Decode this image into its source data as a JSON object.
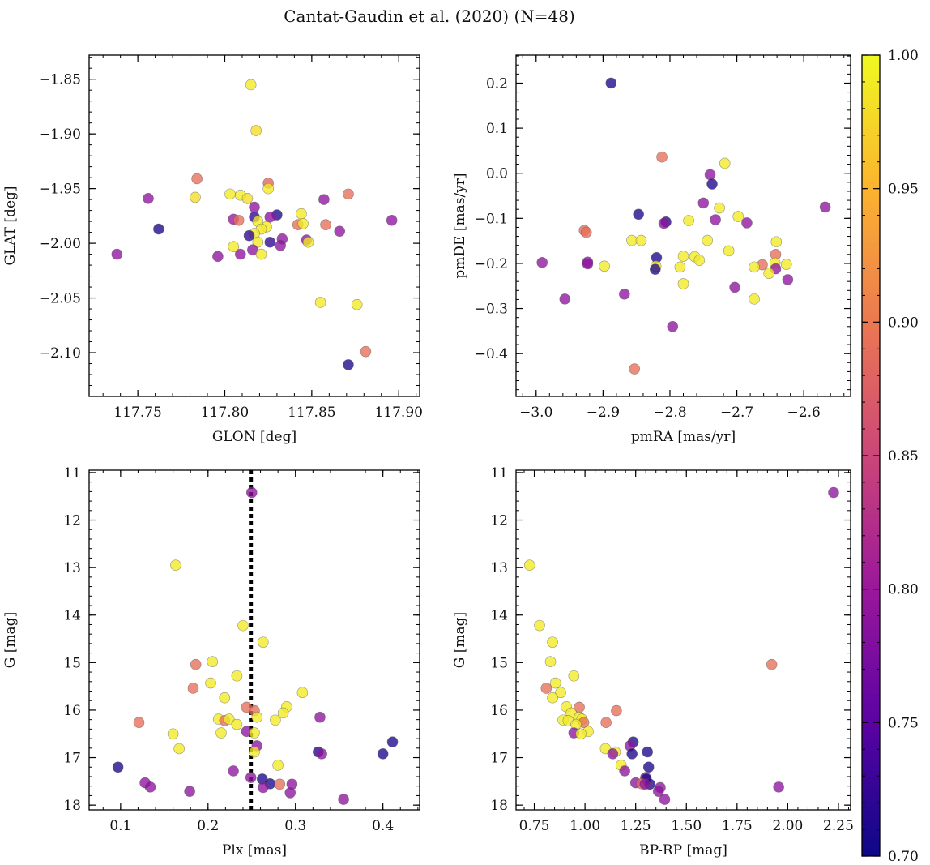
{
  "figure": {
    "title": "Cantat-Gaudin et al. (2020) (N=48)"
  },
  "colorbar": {
    "range": [
      0.7,
      1.0
    ],
    "ticks": [
      0.7,
      0.75,
      0.8,
      0.85,
      0.9,
      0.95,
      1.0
    ],
    "tick_labels": [
      "0.70",
      "0.75",
      "0.80",
      "0.85",
      "0.90",
      "0.95",
      "1.00"
    ],
    "colormap": "plasma",
    "stops": [
      "#0d0887",
      "#5b02a3",
      "#9a179b",
      "#cb4678",
      "#eb7852",
      "#fbb32f",
      "#f0f921"
    ]
  },
  "chart_data": [
    {
      "type": "scatter",
      "id": "sky",
      "title": "",
      "xlabel": "GLON [deg]",
      "ylabel": "GLAT [deg]",
      "xlim": [
        117.722,
        117.912
      ],
      "ylim": [
        -2.14,
        -1.828
      ],
      "y_inverted": false,
      "xticks": [
        117.75,
        117.8,
        117.85,
        117.9
      ],
      "xtick_labels": [
        "117.75",
        "117.80",
        "117.85",
        "117.90"
      ],
      "xminor": 0.01,
      "yticks": [
        -2.1,
        -2.05,
        -2.0,
        -1.95,
        -1.9,
        -1.85
      ],
      "ytick_labels": [
        "−2.10",
        "−2.05",
        "−2.00",
        "−1.95",
        "−1.90",
        "−1.85"
      ],
      "yminor": 0.01,
      "points": [
        {
          "x": 117.815,
          "y": -1.855,
          "c": 0.99
        },
        {
          "x": 117.818,
          "y": -1.897,
          "c": 0.98
        },
        {
          "x": 117.784,
          "y": -1.941,
          "c": 0.89
        },
        {
          "x": 117.825,
          "y": -1.945,
          "c": 0.88
        },
        {
          "x": 117.756,
          "y": -1.959,
          "c": 0.79
        },
        {
          "x": 117.783,
          "y": -1.958,
          "c": 0.98
        },
        {
          "x": 117.803,
          "y": -1.955,
          "c": 0.99
        },
        {
          "x": 117.809,
          "y": -1.956,
          "c": 0.99
        },
        {
          "x": 117.813,
          "y": -1.959,
          "c": 0.98
        },
        {
          "x": 117.825,
          "y": -1.95,
          "c": 0.99
        },
        {
          "x": 117.871,
          "y": -1.955,
          "c": 0.89
        },
        {
          "x": 117.857,
          "y": -1.96,
          "c": 0.79
        },
        {
          "x": 117.817,
          "y": -1.967,
          "c": 0.79
        },
        {
          "x": 117.844,
          "y": -1.973,
          "c": 0.99
        },
        {
          "x": 117.83,
          "y": -1.974,
          "c": 0.71
        },
        {
          "x": 117.805,
          "y": -1.978,
          "c": 0.8
        },
        {
          "x": 117.808,
          "y": -1.979,
          "c": 0.89
        },
        {
          "x": 117.817,
          "y": -1.976,
          "c": 0.72
        },
        {
          "x": 117.826,
          "y": -1.976,
          "c": 0.79
        },
        {
          "x": 117.819,
          "y": -1.98,
          "c": 0.99
        },
        {
          "x": 117.896,
          "y": -1.979,
          "c": 0.79
        },
        {
          "x": 117.762,
          "y": -1.987,
          "c": 0.71
        },
        {
          "x": 117.858,
          "y": -1.983,
          "c": 0.89
        },
        {
          "x": 117.842,
          "y": -1.983,
          "c": 0.89
        },
        {
          "x": 117.845,
          "y": -1.982,
          "c": 0.99
        },
        {
          "x": 117.824,
          "y": -1.985,
          "c": 0.99
        },
        {
          "x": 117.821,
          "y": -1.987,
          "c": 0.99
        },
        {
          "x": 117.866,
          "y": -1.989,
          "c": 0.79
        },
        {
          "x": 117.817,
          "y": -1.991,
          "c": 0.99
        },
        {
          "x": 117.814,
          "y": -1.993,
          "c": 0.72
        },
        {
          "x": 117.833,
          "y": -1.996,
          "c": 0.79
        },
        {
          "x": 117.826,
          "y": -1.999,
          "c": 0.72
        },
        {
          "x": 117.847,
          "y": -1.997,
          "c": 0.79
        },
        {
          "x": 117.848,
          "y": -1.999,
          "c": 0.99
        },
        {
          "x": 117.819,
          "y": -1.999,
          "c": 0.99
        },
        {
          "x": 117.832,
          "y": -2.002,
          "c": 0.79
        },
        {
          "x": 117.805,
          "y": -2.003,
          "c": 0.99
        },
        {
          "x": 117.816,
          "y": -2.006,
          "c": 0.79
        },
        {
          "x": 117.738,
          "y": -2.01,
          "c": 0.79
        },
        {
          "x": 117.809,
          "y": -2.01,
          "c": 0.79
        },
        {
          "x": 117.821,
          "y": -2.01,
          "c": 0.99
        },
        {
          "x": 117.796,
          "y": -2.012,
          "c": 0.79
        },
        {
          "x": 117.855,
          "y": -2.054,
          "c": 0.99
        },
        {
          "x": 117.876,
          "y": -2.056,
          "c": 0.99
        },
        {
          "x": 117.881,
          "y": -2.099,
          "c": 0.89
        },
        {
          "x": 117.871,
          "y": -2.111,
          "c": 0.71
        }
      ]
    },
    {
      "type": "scatter",
      "id": "pm",
      "title": "",
      "xlabel": "pmRA [mas/yr]",
      "ylabel": "pmDE [mas/yr]",
      "xlim": [
        -3.03,
        -2.53
      ],
      "ylim": [
        -0.495,
        0.262
      ],
      "y_inverted": false,
      "xticks": [
        -3.0,
        -2.9,
        -2.8,
        -2.7,
        -2.6
      ],
      "xtick_labels": [
        "−3.0",
        "−2.9",
        "−2.8",
        "−2.7",
        "−2.6"
      ],
      "xminor": 0.02,
      "yticks": [
        -0.4,
        -0.3,
        -0.2,
        -0.1,
        0.0,
        0.1,
        0.2
      ],
      "ytick_labels": [
        "−0.4",
        "−0.3",
        "−0.2",
        "−0.1",
        "0.0",
        "0.1",
        "0.2"
      ],
      "yminor": 0.02,
      "points": [
        {
          "x": -2.888,
          "y": 0.2,
          "c": 0.71
        },
        {
          "x": -2.812,
          "y": 0.036,
          "c": 0.89
        },
        {
          "x": -2.718,
          "y": 0.022,
          "c": 0.99
        },
        {
          "x": -2.74,
          "y": -0.003,
          "c": 0.79
        },
        {
          "x": -2.737,
          "y": -0.024,
          "c": 0.71
        },
        {
          "x": -2.75,
          "y": -0.066,
          "c": 0.79
        },
        {
          "x": -2.726,
          "y": -0.077,
          "c": 0.99
        },
        {
          "x": -2.568,
          "y": -0.075,
          "c": 0.79
        },
        {
          "x": -2.847,
          "y": -0.091,
          "c": 0.71
        },
        {
          "x": -2.698,
          "y": -0.096,
          "c": 0.99
        },
        {
          "x": -2.732,
          "y": -0.103,
          "c": 0.79
        },
        {
          "x": -2.772,
          "y": -0.105,
          "c": 0.99
        },
        {
          "x": -2.806,
          "y": -0.108,
          "c": 0.71
        },
        {
          "x": -2.809,
          "y": -0.111,
          "c": 0.79
        },
        {
          "x": -2.685,
          "y": -0.11,
          "c": 0.79
        },
        {
          "x": -2.928,
          "y": -0.127,
          "c": 0.89
        },
        {
          "x": -2.925,
          "y": -0.131,
          "c": 0.89
        },
        {
          "x": -2.857,
          "y": -0.149,
          "c": 0.99
        },
        {
          "x": -2.843,
          "y": -0.149,
          "c": 0.99
        },
        {
          "x": -2.744,
          "y": -0.149,
          "c": 0.99
        },
        {
          "x": -2.641,
          "y": -0.152,
          "c": 0.99
        },
        {
          "x": -2.712,
          "y": -0.172,
          "c": 0.99
        },
        {
          "x": -2.642,
          "y": -0.18,
          "c": 0.89
        },
        {
          "x": -2.78,
          "y": -0.184,
          "c": 0.99
        },
        {
          "x": -2.763,
          "y": -0.185,
          "c": 0.99
        },
        {
          "x": -2.82,
          "y": -0.187,
          "c": 0.71
        },
        {
          "x": -2.756,
          "y": -0.193,
          "c": 0.99
        },
        {
          "x": -2.991,
          "y": -0.198,
          "c": 0.79
        },
        {
          "x": -2.923,
          "y": -0.197,
          "c": 0.79
        },
        {
          "x": -2.923,
          "y": -0.201,
          "c": 0.79
        },
        {
          "x": -2.662,
          "y": -0.203,
          "c": 0.89
        },
        {
          "x": -2.643,
          "y": -0.199,
          "c": 0.99
        },
        {
          "x": -2.626,
          "y": -0.202,
          "c": 0.99
        },
        {
          "x": -2.898,
          "y": -0.206,
          "c": 0.99
        },
        {
          "x": -2.674,
          "y": -0.208,
          "c": 0.99
        },
        {
          "x": -2.785,
          "y": -0.208,
          "c": 0.99
        },
        {
          "x": -2.821,
          "y": -0.206,
          "c": 0.99
        },
        {
          "x": -2.822,
          "y": -0.213,
          "c": 0.71
        },
        {
          "x": -2.642,
          "y": -0.212,
          "c": 0.79
        },
        {
          "x": -2.652,
          "y": -0.222,
          "c": 0.99
        },
        {
          "x": -2.624,
          "y": -0.236,
          "c": 0.79
        },
        {
          "x": -2.78,
          "y": -0.245,
          "c": 0.99
        },
        {
          "x": -2.703,
          "y": -0.253,
          "c": 0.79
        },
        {
          "x": -2.868,
          "y": -0.268,
          "c": 0.79
        },
        {
          "x": -2.957,
          "y": -0.279,
          "c": 0.79
        },
        {
          "x": -2.674,
          "y": -0.279,
          "c": 0.99
        },
        {
          "x": -2.796,
          "y": -0.34,
          "c": 0.79
        },
        {
          "x": -2.853,
          "y": -0.434,
          "c": 0.89
        }
      ]
    },
    {
      "type": "scatter",
      "id": "plx",
      "title": "",
      "xlabel": "Plx [mas]",
      "ylabel": "G [mag]",
      "xlim": [
        0.064,
        0.442
      ],
      "ylim": [
        18.1,
        10.95
      ],
      "y_inverted": true,
      "xticks": [
        0.1,
        0.2,
        0.3,
        0.4
      ],
      "xtick_labels": [
        "0.1",
        "0.2",
        "0.3",
        "0.4"
      ],
      "xminor": 0.02,
      "yticks": [
        11,
        12,
        13,
        14,
        15,
        16,
        17,
        18
      ],
      "ytick_labels": [
        "11",
        "12",
        "13",
        "14",
        "15",
        "16",
        "17",
        "18"
      ],
      "yminor": 0.2,
      "vline": {
        "x": 0.249,
        "style": "dotted"
      },
      "points": [
        {
          "x": 0.25,
          "y": 11.42,
          "c": 0.79
        },
        {
          "x": 0.163,
          "y": 12.95,
          "c": 0.99
        },
        {
          "x": 0.24,
          "y": 14.22,
          "c": 0.99
        },
        {
          "x": 0.263,
          "y": 14.57,
          "c": 0.99
        },
        {
          "x": 0.205,
          "y": 14.98,
          "c": 0.99
        },
        {
          "x": 0.186,
          "y": 15.04,
          "c": 0.89
        },
        {
          "x": 0.233,
          "y": 15.28,
          "c": 0.99
        },
        {
          "x": 0.203,
          "y": 15.43,
          "c": 0.99
        },
        {
          "x": 0.183,
          "y": 15.54,
          "c": 0.89
        },
        {
          "x": 0.308,
          "y": 15.63,
          "c": 0.99
        },
        {
          "x": 0.219,
          "y": 15.74,
          "c": 0.99
        },
        {
          "x": 0.244,
          "y": 15.94,
          "c": 0.89
        },
        {
          "x": 0.29,
          "y": 15.93,
          "c": 0.99
        },
        {
          "x": 0.253,
          "y": 16.01,
          "c": 0.89
        },
        {
          "x": 0.286,
          "y": 16.06,
          "c": 0.99
        },
        {
          "x": 0.256,
          "y": 16.15,
          "c": 0.99
        },
        {
          "x": 0.328,
          "y": 16.15,
          "c": 0.79
        },
        {
          "x": 0.212,
          "y": 16.19,
          "c": 0.99
        },
        {
          "x": 0.219,
          "y": 16.22,
          "c": 0.89
        },
        {
          "x": 0.224,
          "y": 16.19,
          "c": 0.99
        },
        {
          "x": 0.277,
          "y": 16.21,
          "c": 0.99
        },
        {
          "x": 0.121,
          "y": 16.26,
          "c": 0.89
        },
        {
          "x": 0.233,
          "y": 16.3,
          "c": 0.99
        },
        {
          "x": 0.244,
          "y": 16.45,
          "c": 0.79
        },
        {
          "x": 0.215,
          "y": 16.48,
          "c": 0.99
        },
        {
          "x": 0.16,
          "y": 16.5,
          "c": 0.99
        },
        {
          "x": 0.253,
          "y": 16.48,
          "c": 0.99
        },
        {
          "x": 0.411,
          "y": 16.67,
          "c": 0.71
        },
        {
          "x": 0.256,
          "y": 16.75,
          "c": 0.79
        },
        {
          "x": 0.167,
          "y": 16.81,
          "c": 0.99
        },
        {
          "x": 0.253,
          "y": 16.88,
          "c": 0.99
        },
        {
          "x": 0.326,
          "y": 16.88,
          "c": 0.71
        },
        {
          "x": 0.33,
          "y": 16.92,
          "c": 0.79
        },
        {
          "x": 0.4,
          "y": 16.92,
          "c": 0.71
        },
        {
          "x": 0.28,
          "y": 17.16,
          "c": 0.99
        },
        {
          "x": 0.097,
          "y": 17.2,
          "c": 0.71
        },
        {
          "x": 0.229,
          "y": 17.28,
          "c": 0.79
        },
        {
          "x": 0.249,
          "y": 17.42,
          "c": 0.79
        },
        {
          "x": 0.262,
          "y": 17.45,
          "c": 0.71
        },
        {
          "x": 0.128,
          "y": 17.53,
          "c": 0.79
        },
        {
          "x": 0.271,
          "y": 17.55,
          "c": 0.71
        },
        {
          "x": 0.282,
          "y": 17.56,
          "c": 0.89
        },
        {
          "x": 0.296,
          "y": 17.56,
          "c": 0.79
        },
        {
          "x": 0.134,
          "y": 17.62,
          "c": 0.79
        },
        {
          "x": 0.263,
          "y": 17.63,
          "c": 0.79
        },
        {
          "x": 0.179,
          "y": 17.71,
          "c": 0.79
        },
        {
          "x": 0.294,
          "y": 17.74,
          "c": 0.79
        },
        {
          "x": 0.355,
          "y": 17.88,
          "c": 0.79
        }
      ]
    },
    {
      "type": "scatter",
      "id": "cmd",
      "title": "",
      "xlabel": "BP-RP [mag]",
      "ylabel": "G [mag]",
      "xlim": [
        0.66,
        2.31
      ],
      "ylim": [
        18.1,
        10.95
      ],
      "y_inverted": true,
      "xticks": [
        0.75,
        1.0,
        1.25,
        1.5,
        1.75,
        2.0,
        2.25
      ],
      "xtick_labels": [
        "0.75",
        "1.00",
        "1.25",
        "1.50",
        "1.75",
        "2.00",
        "2.25"
      ],
      "xminor": 0.05,
      "yticks": [
        11,
        12,
        13,
        14,
        15,
        16,
        17,
        18
      ],
      "ytick_labels": [
        "11",
        "12",
        "13",
        "14",
        "15",
        "16",
        "17",
        "18"
      ],
      "yminor": 0.2,
      "points": [
        {
          "x": 2.226,
          "y": 11.42,
          "c": 0.79
        },
        {
          "x": 0.727,
          "y": 12.95,
          "c": 0.99
        },
        {
          "x": 0.776,
          "y": 14.22,
          "c": 0.99
        },
        {
          "x": 0.84,
          "y": 14.57,
          "c": 0.99
        },
        {
          "x": 0.83,
          "y": 14.98,
          "c": 0.99
        },
        {
          "x": 1.921,
          "y": 15.04,
          "c": 0.89
        },
        {
          "x": 0.945,
          "y": 15.28,
          "c": 0.99
        },
        {
          "x": 0.855,
          "y": 15.43,
          "c": 0.99
        },
        {
          "x": 0.809,
          "y": 15.54,
          "c": 0.89
        },
        {
          "x": 0.88,
          "y": 15.63,
          "c": 0.99
        },
        {
          "x": 0.84,
          "y": 15.74,
          "c": 0.99
        },
        {
          "x": 0.908,
          "y": 15.93,
          "c": 0.99
        },
        {
          "x": 0.972,
          "y": 15.94,
          "c": 0.89
        },
        {
          "x": 1.155,
          "y": 16.01,
          "c": 0.89
        },
        {
          "x": 0.932,
          "y": 16.06,
          "c": 0.99
        },
        {
          "x": 0.972,
          "y": 16.15,
          "c": 0.99
        },
        {
          "x": 0.985,
          "y": 16.19,
          "c": 0.99
        },
        {
          "x": 0.892,
          "y": 16.21,
          "c": 0.99
        },
        {
          "x": 0.917,
          "y": 16.22,
          "c": 0.99
        },
        {
          "x": 0.994,
          "y": 16.26,
          "c": 0.89
        },
        {
          "x": 1.104,
          "y": 16.26,
          "c": 0.89
        },
        {
          "x": 0.956,
          "y": 16.3,
          "c": 0.99
        },
        {
          "x": 1.016,
          "y": 16.45,
          "c": 0.99
        },
        {
          "x": 0.945,
          "y": 16.48,
          "c": 0.79
        },
        {
          "x": 0.98,
          "y": 16.5,
          "c": 0.99
        },
        {
          "x": 1.238,
          "y": 16.67,
          "c": 0.71
        },
        {
          "x": 1.222,
          "y": 16.75,
          "c": 0.79
        },
        {
          "x": 1.101,
          "y": 16.81,
          "c": 0.99
        },
        {
          "x": 1.308,
          "y": 16.88,
          "c": 0.71
        },
        {
          "x": 1.149,
          "y": 16.88,
          "c": 0.99
        },
        {
          "x": 1.137,
          "y": 16.92,
          "c": 0.79
        },
        {
          "x": 1.232,
          "y": 16.92,
          "c": 0.71
        },
        {
          "x": 1.178,
          "y": 17.16,
          "c": 0.99
        },
        {
          "x": 1.314,
          "y": 17.2,
          "c": 0.71
        },
        {
          "x": 1.196,
          "y": 17.28,
          "c": 0.79
        },
        {
          "x": 1.299,
          "y": 17.42,
          "c": 0.79
        },
        {
          "x": 1.302,
          "y": 17.45,
          "c": 0.71
        },
        {
          "x": 1.25,
          "y": 17.53,
          "c": 0.79
        },
        {
          "x": 1.28,
          "y": 17.55,
          "c": 0.89
        },
        {
          "x": 1.32,
          "y": 17.56,
          "c": 0.71
        },
        {
          "x": 1.296,
          "y": 17.56,
          "c": 0.79
        },
        {
          "x": 1.955,
          "y": 17.62,
          "c": 0.79
        },
        {
          "x": 1.371,
          "y": 17.63,
          "c": 0.79
        },
        {
          "x": 1.362,
          "y": 17.71,
          "c": 0.79
        },
        {
          "x": 1.393,
          "y": 17.88,
          "c": 0.79
        }
      ]
    }
  ]
}
